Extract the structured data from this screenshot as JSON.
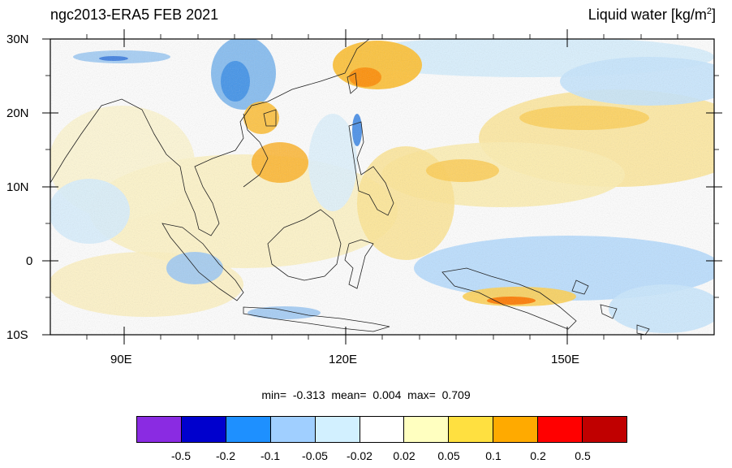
{
  "title_left": "ngc2013-ERA5 FEB 2021",
  "title_right": "Liquid water",
  "units": {
    "open": "[kg/m",
    "sup": "2",
    "close": "]"
  },
  "stats": {
    "min_label": "min=",
    "min": "-0.313",
    "mean_label": "mean=",
    "mean": "0.004",
    "max_label": "max=",
    "max": "0.709"
  },
  "lat_labels": [
    "30N",
    "20N",
    "10N",
    "0",
    "10S"
  ],
  "lon_labels": [
    "90E",
    "120E",
    "150E"
  ],
  "colorbar": {
    "colors": [
      "#8a2be2",
      "#0000cd",
      "#1e90ff",
      "#a0cfff",
      "#d2f0ff",
      "#ffffff",
      "#ffffc0",
      "#ffe040",
      "#ffaa00",
      "#ff0000",
      "#c00000"
    ],
    "labels": [
      "-0.5",
      "-0.2",
      "-0.1",
      "-0.05",
      "-0.02",
      "0.02",
      "0.05",
      "0.1",
      "0.2",
      "0.5"
    ]
  }
}
